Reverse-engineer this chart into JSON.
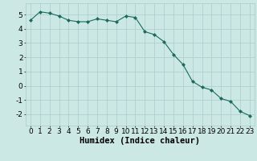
{
  "x": [
    0,
    1,
    2,
    3,
    4,
    5,
    6,
    7,
    8,
    9,
    10,
    11,
    12,
    13,
    14,
    15,
    16,
    17,
    18,
    19,
    20,
    21,
    22,
    23
  ],
  "y": [
    4.6,
    5.2,
    5.1,
    4.9,
    4.6,
    4.5,
    4.5,
    4.7,
    4.6,
    4.5,
    4.9,
    4.8,
    3.8,
    3.6,
    3.1,
    2.2,
    1.5,
    0.3,
    -0.1,
    -0.3,
    -0.9,
    -1.1,
    -1.8,
    -2.1
  ],
  "line_color": "#1a6b5e",
  "marker": "D",
  "marker_size": 2.0,
  "bg_color": "#cce8e4",
  "grid_color": "#aacccc",
  "xlabel": "Humidex (Indice chaleur)",
  "xlabel_fontsize": 7.5,
  "tick_fontsize": 6.5,
  "ylim": [
    -2.8,
    5.8
  ],
  "xlim": [
    -0.5,
    23.5
  ],
  "yticks": [
    -2,
    -1,
    0,
    1,
    2,
    3,
    4,
    5
  ],
  "xticks": [
    0,
    1,
    2,
    3,
    4,
    5,
    6,
    7,
    8,
    9,
    10,
    11,
    12,
    13,
    14,
    15,
    16,
    17,
    18,
    19,
    20,
    21,
    22,
    23
  ]
}
